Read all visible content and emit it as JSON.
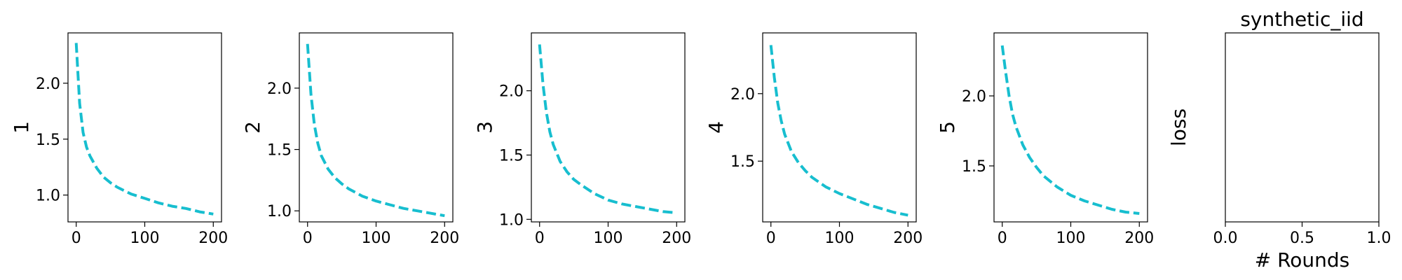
{
  "figure": {
    "background": "#ffffff"
  },
  "chart_data": [
    {
      "type": "line",
      "title": "",
      "xlabel": "",
      "ylabel": "1",
      "xlim": [
        -12,
        212
      ],
      "ylim": [
        0.76,
        2.45
      ],
      "xticks": [
        0,
        100,
        200
      ],
      "yticks": [
        1.0,
        1.5,
        2.0
      ],
      "ytick_labels": [
        "1.0",
        "1.5",
        "2.0"
      ],
      "grid": false,
      "series": [
        {
          "color": "#17becf",
          "style": "dashed",
          "x": [
            0,
            5,
            10,
            15,
            20,
            30,
            40,
            50,
            60,
            80,
            100,
            120,
            140,
            160,
            180,
            200
          ],
          "y": [
            2.36,
            1.82,
            1.56,
            1.43,
            1.35,
            1.24,
            1.16,
            1.11,
            1.07,
            1.01,
            0.97,
            0.93,
            0.9,
            0.88,
            0.85,
            0.83
          ]
        }
      ]
    },
    {
      "type": "line",
      "title": "",
      "xlabel": "",
      "ylabel": "2",
      "xlim": [
        -12,
        212
      ],
      "ylim": [
        0.91,
        2.45
      ],
      "xticks": [
        0,
        100,
        200
      ],
      "yticks": [
        1.0,
        1.5,
        2.0
      ],
      "ytick_labels": [
        "1.0",
        "1.5",
        "2.0"
      ],
      "grid": false,
      "series": [
        {
          "color": "#17becf",
          "style": "dashed",
          "x": [
            0,
            5,
            10,
            15,
            20,
            30,
            40,
            50,
            60,
            80,
            100,
            120,
            140,
            160,
            180,
            200
          ],
          "y": [
            2.36,
            1.95,
            1.7,
            1.55,
            1.45,
            1.34,
            1.27,
            1.22,
            1.18,
            1.12,
            1.08,
            1.05,
            1.02,
            1.0,
            0.98,
            0.96
          ]
        }
      ]
    },
    {
      "type": "line",
      "title": "",
      "xlabel": "",
      "ylabel": "3",
      "xlim": [
        -12,
        212
      ],
      "ylim": [
        0.98,
        2.45
      ],
      "xticks": [
        0,
        100,
        200
      ],
      "yticks": [
        1.0,
        1.5,
        2.0
      ],
      "ytick_labels": [
        "1.0",
        "1.5",
        "2.0"
      ],
      "grid": false,
      "series": [
        {
          "color": "#17becf",
          "style": "dashed",
          "x": [
            0,
            5,
            10,
            15,
            20,
            30,
            40,
            50,
            60,
            80,
            100,
            120,
            140,
            160,
            180,
            200
          ],
          "y": [
            2.36,
            2.05,
            1.83,
            1.68,
            1.58,
            1.45,
            1.37,
            1.31,
            1.27,
            1.2,
            1.15,
            1.12,
            1.1,
            1.08,
            1.06,
            1.05
          ]
        }
      ]
    },
    {
      "type": "line",
      "title": "",
      "xlabel": "",
      "ylabel": "4",
      "xlim": [
        -12,
        212
      ],
      "ylim": [
        1.05,
        2.45
      ],
      "xticks": [
        0,
        100,
        200
      ],
      "yticks": [
        1.5,
        2.0
      ],
      "ytick_labels": [
        "1.5",
        "2.0"
      ],
      "grid": false,
      "series": [
        {
          "color": "#17becf",
          "style": "dashed",
          "x": [
            0,
            5,
            10,
            15,
            20,
            30,
            40,
            50,
            60,
            80,
            100,
            120,
            140,
            160,
            180,
            200
          ],
          "y": [
            2.36,
            2.12,
            1.93,
            1.8,
            1.7,
            1.57,
            1.49,
            1.43,
            1.38,
            1.31,
            1.26,
            1.22,
            1.18,
            1.15,
            1.12,
            1.1
          ]
        }
      ]
    },
    {
      "type": "line",
      "title": "",
      "xlabel": "",
      "ylabel": "5",
      "xlim": [
        -12,
        212
      ],
      "ylim": [
        1.1,
        2.45
      ],
      "xticks": [
        0,
        100,
        200
      ],
      "yticks": [
        1.5,
        2.0
      ],
      "ytick_labels": [
        "1.5",
        "2.0"
      ],
      "grid": false,
      "series": [
        {
          "color": "#17becf",
          "style": "dashed",
          "x": [
            0,
            5,
            10,
            15,
            20,
            30,
            40,
            50,
            60,
            80,
            100,
            120,
            140,
            160,
            180,
            200
          ],
          "y": [
            2.36,
            2.17,
            2.0,
            1.87,
            1.78,
            1.65,
            1.56,
            1.49,
            1.43,
            1.35,
            1.29,
            1.25,
            1.22,
            1.19,
            1.17,
            1.16
          ]
        }
      ]
    },
    {
      "type": "line",
      "title": "synthetic_iid",
      "xlabel": "# Rounds",
      "ylabel": "loss",
      "xlim": [
        0,
        1
      ],
      "ylim": [
        0,
        1
      ],
      "xticks": [
        0,
        0.5,
        1.0
      ],
      "xtick_labels": [
        "0.0",
        "0.5",
        "1.0"
      ],
      "yticks": [],
      "ytick_labels": [],
      "grid": false,
      "series": []
    }
  ]
}
